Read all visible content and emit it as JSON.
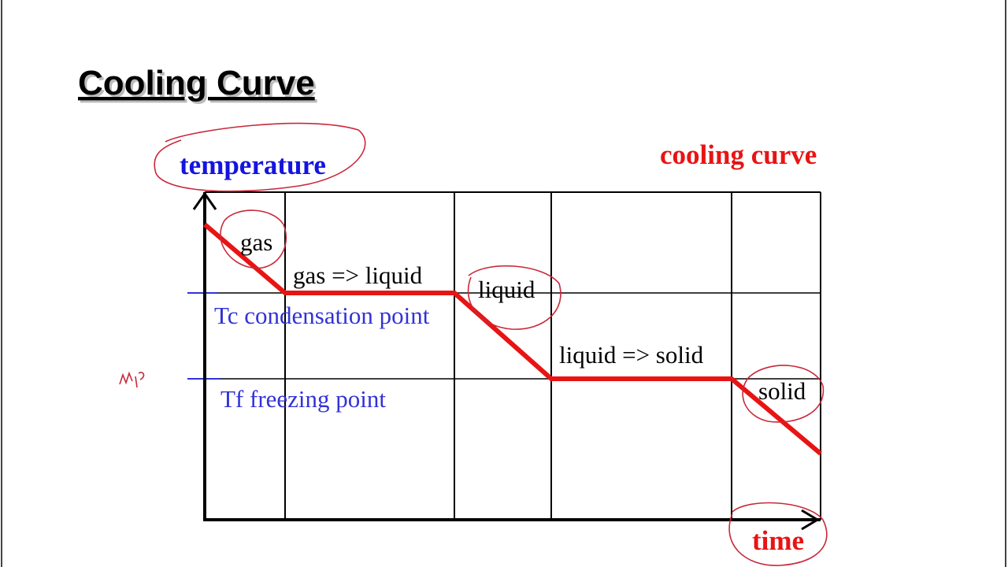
{
  "slide": {
    "title": "Cooling Curve"
  },
  "diagram": {
    "y_axis_label": "temperature",
    "x_axis_label": "time",
    "caption": "cooling curve",
    "phases": [
      "gas",
      "gas => liquid",
      "liquid",
      "liquid => solid",
      "solid"
    ],
    "reference_lines": [
      "Tc condensation point",
      "Tf freezing point"
    ]
  }
}
